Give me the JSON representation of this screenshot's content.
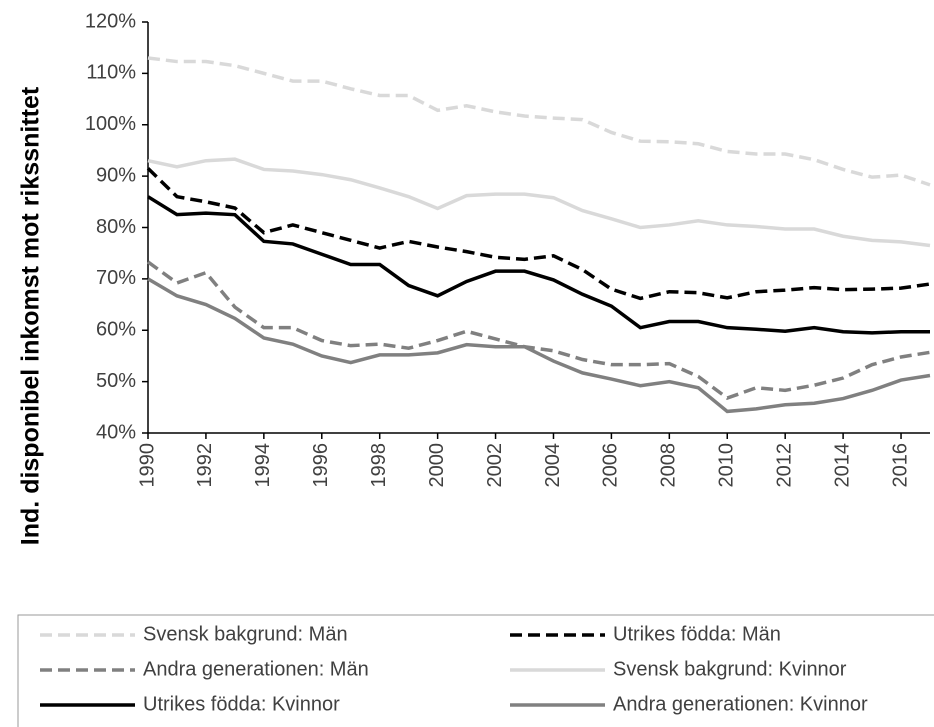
{
  "chart_data": {
    "type": "line",
    "y_label": "Ind. disponibel inkomst mot rikssnittet",
    "x": [
      1990,
      1991,
      1992,
      1993,
      1994,
      1995,
      1996,
      1997,
      1998,
      1999,
      2000,
      2001,
      2002,
      2003,
      2004,
      2005,
      2006,
      2007,
      2008,
      2009,
      2010,
      2011,
      2012,
      2013,
      2014,
      2015,
      2016,
      2017
    ],
    "xlim": [
      1990,
      2017
    ],
    "xticks": [
      1990,
      1992,
      1994,
      1996,
      1998,
      2000,
      2002,
      2004,
      2006,
      2008,
      2010,
      2012,
      2014,
      2016
    ],
    "ylim": [
      40,
      120
    ],
    "yticks": [
      {
        "value": 40,
        "label": "40%"
      },
      {
        "value": 50,
        "label": "50%"
      },
      {
        "value": 60,
        "label": "60%"
      },
      {
        "value": 70,
        "label": "70%"
      },
      {
        "value": 80,
        "label": "80%"
      },
      {
        "value": 90,
        "label": "90%"
      },
      {
        "value": 100,
        "label": "100%"
      },
      {
        "value": 110,
        "label": "110%"
      },
      {
        "value": 120,
        "label": "120%"
      }
    ],
    "grid": false,
    "legend": "bottom",
    "series": [
      {
        "name": "Svensk bakgrund: Män",
        "color": "#d9d9d9",
        "dashed": true,
        "values": [
          113,
          112.3,
          112.3,
          111.5,
          110,
          108.5,
          108.5,
          107,
          105.7,
          105.7,
          102.8,
          103.7,
          102.5,
          101.7,
          101.3,
          101,
          98.5,
          96.8,
          96.7,
          96.3,
          94.8,
          94.3,
          94.3,
          93.2,
          91.3,
          89.8,
          90.2,
          88.3
        ]
      },
      {
        "name": "Utrikes födda: Män",
        "color": "#000000",
        "dashed": true,
        "values": [
          91.5,
          86,
          85,
          83.8,
          79,
          80.5,
          79,
          77.5,
          76,
          77.3,
          76.2,
          75.3,
          74.2,
          73.8,
          74.5,
          71.8,
          68,
          66.2,
          67.5,
          67.3,
          66.3,
          67.5,
          67.8,
          68.3,
          67.9,
          68,
          68.2,
          69
        ]
      },
      {
        "name": "Andra generationen: Män",
        "color": "#808080",
        "dashed": true,
        "values": [
          73.3,
          69.2,
          71.2,
          64.5,
          60.5,
          60.5,
          58,
          57,
          57.3,
          56.5,
          58,
          59.8,
          58.3,
          56.8,
          56,
          54.3,
          53.3,
          53.3,
          53.5,
          51,
          46.8,
          48.8,
          48.3,
          49.3,
          50.7,
          53.3,
          54.8,
          55.7
        ]
      },
      {
        "name": "Svensk bakgrund: Kvinnor",
        "color": "#d9d9d9",
        "dashed": false,
        "values": [
          93,
          91.8,
          93,
          93.3,
          91.3,
          91,
          90.3,
          89.3,
          87.7,
          86,
          83.7,
          86.2,
          86.5,
          86.5,
          85.8,
          83.3,
          81.7,
          80,
          80.5,
          81.3,
          80.5,
          80.2,
          79.7,
          79.7,
          78.3,
          77.5,
          77.2,
          76.5
        ]
      },
      {
        "name": "Utrikes födda: Kvinnor",
        "color": "#000000",
        "dashed": false,
        "values": [
          86,
          82.5,
          82.8,
          82.5,
          77.3,
          76.8,
          74.8,
          72.8,
          72.8,
          68.7,
          66.7,
          69.5,
          71.5,
          71.5,
          69.8,
          67,
          64.7,
          60.5,
          61.7,
          61.7,
          60.5,
          60.2,
          59.8,
          60.5,
          59.7,
          59.5,
          59.7,
          59.7
        ]
      },
      {
        "name": "Andra generationen: Kvinnor",
        "color": "#808080",
        "dashed": false,
        "values": [
          70,
          66.7,
          65,
          62.3,
          58.5,
          57.3,
          55,
          53.7,
          55.2,
          55.2,
          55.6,
          57.2,
          56.8,
          56.8,
          54,
          51.7,
          50.5,
          49.2,
          50,
          48.8,
          44.2,
          44.7,
          45.5,
          45.8,
          46.7,
          48.3,
          50.3,
          51.2
        ]
      }
    ]
  }
}
